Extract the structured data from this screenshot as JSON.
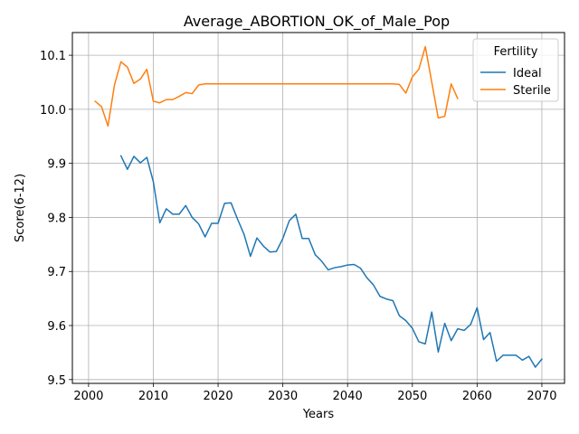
{
  "chart_data": {
    "type": "line",
    "title": "Average_ABORTION_OK_of_Male_Pop",
    "xlabel": "Years",
    "ylabel": "Score(6-12)",
    "xlim": [
      1997.5,
      2073.5
    ],
    "ylim": [
      9.493,
      10.142
    ],
    "xticks": [
      2000,
      2010,
      2020,
      2030,
      2040,
      2050,
      2060,
      2070
    ],
    "yticks": [
      9.5,
      9.6,
      9.7,
      9.8,
      9.9,
      10.0,
      10.1
    ],
    "ytick_labels": [
      "9.5",
      "9.6",
      "9.7",
      "9.8",
      "9.9",
      "10.0",
      "10.1"
    ],
    "grid": true,
    "legend": {
      "title": "Fertility",
      "placement": "top-right"
    },
    "series": [
      {
        "name": "Ideal",
        "color": "#1f77b4",
        "x": [
          2005,
          2006,
          2007,
          2008,
          2009,
          2010,
          2011,
          2012,
          2013,
          2014,
          2015,
          2016,
          2017,
          2018,
          2019,
          2020,
          2021,
          2022,
          2023,
          2024,
          2025,
          2026,
          2027,
          2028,
          2029,
          2030,
          2031,
          2032,
          2033,
          2034,
          2035,
          2036,
          2037,
          2038,
          2039,
          2040,
          2041,
          2042,
          2043,
          2044,
          2045,
          2046,
          2047,
          2048,
          2049,
          2050,
          2051,
          2052,
          2053,
          2054,
          2055,
          2056,
          2057,
          2058,
          2059,
          2060,
          2061,
          2062,
          2063,
          2064,
          2065,
          2066,
          2067,
          2068,
          2069,
          2070
        ],
        "y": [
          9.914,
          9.889,
          9.913,
          9.901,
          9.911,
          9.866,
          9.79,
          9.816,
          9.806,
          9.806,
          9.822,
          9.8,
          9.788,
          9.764,
          9.789,
          9.789,
          9.826,
          9.827,
          9.797,
          9.769,
          9.728,
          9.762,
          9.747,
          9.736,
          9.737,
          9.761,
          9.794,
          9.806,
          9.761,
          9.761,
          9.731,
          9.719,
          9.703,
          9.707,
          9.709,
          9.712,
          9.713,
          9.706,
          9.688,
          9.675,
          9.654,
          9.649,
          9.646,
          9.618,
          9.609,
          9.595,
          9.57,
          9.566,
          9.625,
          9.551,
          9.604,
          9.572,
          9.594,
          9.591,
          9.602,
          9.633,
          9.574,
          9.587,
          9.534,
          9.545,
          9.545,
          9.545,
          9.536,
          9.543,
          9.523,
          9.538
        ]
      },
      {
        "name": "Sterile",
        "color": "#ff7f0e",
        "x": [
          2001,
          2002,
          2003,
          2004,
          2005,
          2006,
          2007,
          2008,
          2009,
          2010,
          2011,
          2012,
          2013,
          2014,
          2015,
          2016,
          2017,
          2018,
          2019,
          2020,
          2021,
          2022,
          2023,
          2024,
          2025,
          2026,
          2027,
          2028,
          2029,
          2030,
          2031,
          2032,
          2033,
          2034,
          2035,
          2036,
          2037,
          2038,
          2039,
          2040,
          2041,
          2042,
          2043,
          2044,
          2045,
          2046,
          2047,
          2048,
          2049,
          2050,
          2051,
          2052,
          2053,
          2054,
          2055,
          2056,
          2057
        ],
        "y": [
          10.015,
          10.005,
          9.969,
          10.045,
          10.088,
          10.078,
          10.048,
          10.056,
          10.074,
          10.015,
          10.012,
          10.018,
          10.018,
          10.024,
          10.031,
          10.029,
          10.045,
          10.047,
          10.047,
          10.047,
          10.047,
          10.047,
          10.047,
          10.047,
          10.047,
          10.047,
          10.047,
          10.047,
          10.047,
          10.047,
          10.047,
          10.047,
          10.047,
          10.047,
          10.047,
          10.047,
          10.047,
          10.047,
          10.047,
          10.047,
          10.047,
          10.047,
          10.047,
          10.047,
          10.047,
          10.047,
          10.047,
          10.046,
          10.03,
          10.06,
          10.074,
          10.116,
          10.05,
          9.984,
          9.987,
          10.047,
          10.02
        ]
      }
    ]
  }
}
